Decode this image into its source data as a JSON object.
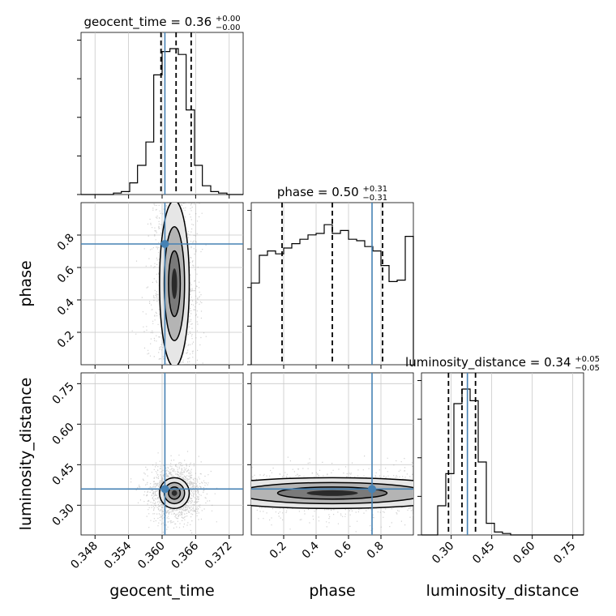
{
  "colors": {
    "truth": "#4682b4",
    "line": "#000000",
    "grid": "#c8c8c8",
    "points": "#9a9a9a"
  },
  "chart_data": {
    "type": "corner",
    "parameters": [
      "geocent_time",
      "phase",
      "luminosity_distance"
    ],
    "truths": {
      "geocent_time": 0.3605,
      "phase": 0.745,
      "luminosity_distance": 0.36
    },
    "titles": {
      "geocent_time": {
        "prefix": "geocent_time = 0.36",
        "plus": "+0.00",
        "minus": "−0.00"
      },
      "phase": {
        "prefix": "phase = 0.50",
        "plus": "+0.31",
        "minus": "−0.31"
      },
      "luminosity_distance": {
        "prefix": "luminosity_distance = 0.34",
        "plus": "+0.05",
        "minus": "−0.05"
      }
    },
    "axis_labels": {
      "x": [
        "geocent_time",
        "phase",
        "luminosity_distance"
      ],
      "y": [
        "phase",
        "luminosity_distance"
      ]
    },
    "ticks": {
      "geocent_time": [
        "0.348",
        "0.354",
        "0.360",
        "0.366",
        "0.372"
      ],
      "phase": [
        "0.2",
        "0.4",
        "0.6",
        "0.8"
      ],
      "luminosity_distance": [
        "0.30",
        "0.45",
        "0.60",
        "0.75"
      ]
    },
    "ranges": {
      "geocent_time": [
        0.3455,
        0.3745
      ],
      "phase": [
        0.0,
        1.0
      ],
      "luminosity_distance": [
        0.19,
        0.79
      ]
    },
    "quantiles": {
      "geocent_time": [
        0.3598,
        0.3625,
        0.3652
      ],
      "phase": [
        0.19,
        0.5,
        0.81
      ],
      "luminosity_distance": [
        0.29,
        0.34,
        0.39
      ]
    },
    "histograms": {
      "geocent_time": {
        "edges": [
          0.3455,
          0.3469,
          0.3484,
          0.3498,
          0.3513,
          0.3527,
          0.3542,
          0.3556,
          0.3571,
          0.3585,
          0.36,
          0.3614,
          0.3629,
          0.3643,
          0.3658,
          0.3672,
          0.3687,
          0.3701,
          0.3716,
          0.373,
          0.3745
        ],
        "counts": [
          0,
          0,
          0,
          0,
          0.01,
          0.02,
          0.08,
          0.2,
          0.36,
          0.82,
          0.98,
          1.0,
          0.96,
          0.58,
          0.2,
          0.06,
          0.02,
          0.01,
          0,
          0
        ]
      },
      "phase": {
        "edges": [
          0,
          0.05,
          0.1,
          0.15,
          0.2,
          0.25,
          0.3,
          0.35,
          0.4,
          0.45,
          0.5,
          0.55,
          0.6,
          0.65,
          0.7,
          0.75,
          0.8,
          0.85,
          0.9,
          0.95,
          1.0
        ],
        "counts": [
          0.56,
          0.75,
          0.78,
          0.76,
          0.8,
          0.83,
          0.86,
          0.89,
          0.9,
          0.96,
          0.9,
          0.92,
          0.86,
          0.85,
          0.81,
          0.78,
          0.68,
          0.57,
          0.58,
          0.88
        ]
      },
      "luminosity_distance": {
        "edges": [
          0.19,
          0.22,
          0.25,
          0.28,
          0.31,
          0.34,
          0.37,
          0.4,
          0.43,
          0.46,
          0.49,
          0.52,
          0.55,
          0.58,
          0.61,
          0.64,
          0.67,
          0.7,
          0.73,
          0.76,
          0.79
        ],
        "counts": [
          0,
          0,
          0.2,
          0.42,
          0.9,
          1.0,
          0.92,
          0.5,
          0.08,
          0.02,
          0.01,
          0,
          0,
          0,
          0,
          0,
          0,
          0,
          0,
          0
        ]
      }
    },
    "posteriors2d": [
      {
        "x": "geocent_time",
        "y": "phase",
        "x_center": 0.3622,
        "x_sigma": 0.0014,
        "y_center": 0.5,
        "y_sigma": 0.27
      },
      {
        "x": "geocent_time",
        "y": "luminosity_distance",
        "x_center": 0.3622,
        "x_sigma": 0.0014,
        "y_center": 0.345,
        "y_sigma": 0.03
      },
      {
        "x": "phase",
        "y": "luminosity_distance",
        "x_center": 0.5,
        "x_sigma": 0.45,
        "y_center": 0.345,
        "y_sigma": 0.03
      }
    ]
  }
}
